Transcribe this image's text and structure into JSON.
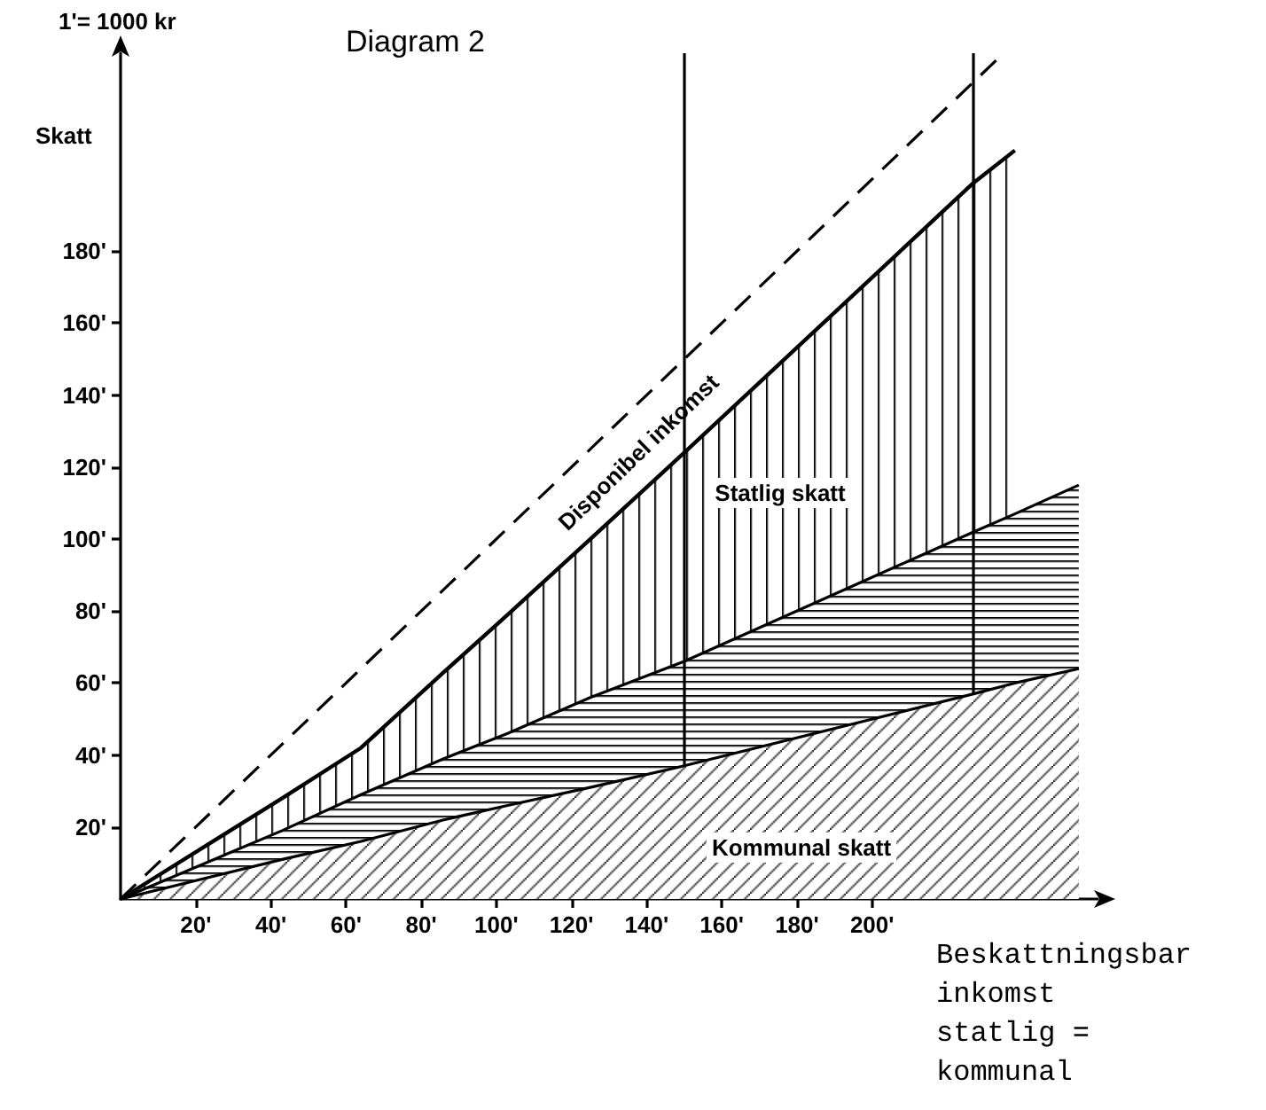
{
  "chart_data": {
    "type": "area",
    "title": "Diagram 2",
    "xlabel": "Beskattningsbar inkomst statlig = kommunal",
    "ylabel": "Skatt",
    "annotations": [
      "1'= 1000 kr",
      "Disponibel inkomst",
      "Statlig skatt",
      "Kommunal skatt"
    ],
    "stacked": true,
    "x": [
      0,
      43,
      64,
      86,
      103,
      125,
      150,
      227,
      238,
      255
    ],
    "series": [
      {
        "color": "#000000",
        "values": [
          0,
          11,
          16,
          22,
          26,
          31,
          37,
          57,
          60,
          64
        ]
      },
      {
        "color": "#000000",
        "values": [
          0,
          8,
          13,
          17,
          20,
          25,
          29,
          45,
          47,
          51
        ]
      },
      {
        "color": "#000000",
        "values": [
          0,
          9,
          13,
          24,
          33,
          44,
          58,
          97,
          101,
          null
        ]
      },
      {
        "type": "line",
        "line_style": "dashed",
        "color": "#000000",
        "x": [
          0,
          233
        ],
        "values": [
          0,
          233
        ]
      }
    ],
    "xlim": [
      0,
      260
    ],
    "ylim": [
      0,
      235
    ],
    "xticks": [
      {
        "value": 20,
        "label": "20'"
      },
      {
        "value": 40,
        "label": "40'"
      },
      {
        "value": 60,
        "label": "60'"
      },
      {
        "value": 80,
        "label": "80'"
      },
      {
        "value": 100,
        "label": "100'"
      },
      {
        "value": 120,
        "label": "120'"
      },
      {
        "value": 140,
        "label": "140'"
      },
      {
        "value": 160,
        "label": "160'"
      },
      {
        "value": 180,
        "label": "180'"
      },
      {
        "value": 200,
        "label": "200'"
      }
    ],
    "yticks": [
      {
        "value": 20,
        "label": "20'"
      },
      {
        "value": 40,
        "label": "40'"
      },
      {
        "value": 60,
        "label": "60'"
      },
      {
        "value": 80,
        "label": "80'"
      },
      {
        "value": 100,
        "label": "100'"
      },
      {
        "value": 120,
        "label": "120'"
      },
      {
        "value": 140,
        "label": "140'"
      },
      {
        "value": 160,
        "label": "160'"
      },
      {
        "value": 180,
        "label": "180'"
      }
    ],
    "ref_lines": [
      {
        "axis": "x",
        "value": 150
      },
      {
        "axis": "x",
        "value": 227
      }
    ],
    "grid": false,
    "marker": "none"
  }
}
